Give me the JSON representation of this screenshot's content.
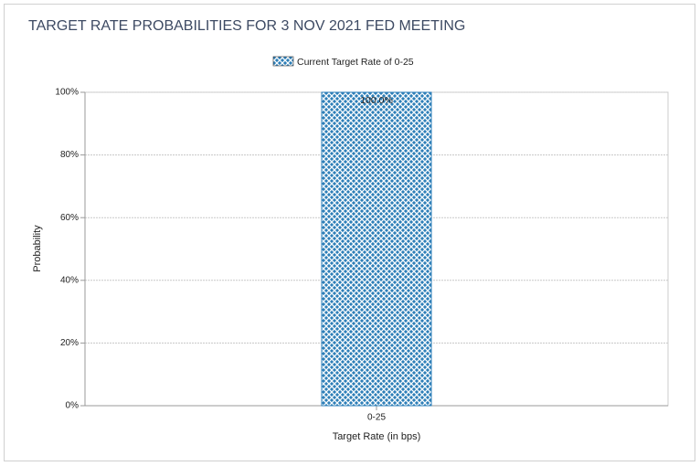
{
  "chart_data": {
    "type": "bar",
    "title": "TARGET RATE PROBABILITIES FOR 3 NOV 2021 FED MEETING",
    "x_label": "Target Rate (in bps)",
    "y_label": "Probability",
    "categories": [
      "0-25"
    ],
    "series": [
      {
        "name": "Current Target Rate of 0-25",
        "color": "#2e7fb8",
        "values": [
          100
        ],
        "value_labels": [
          "100.0%"
        ]
      }
    ],
    "ylim": [
      0,
      100
    ],
    "yticks": [
      {
        "value": 0,
        "label": "0%"
      },
      {
        "value": 20,
        "label": "20%"
      },
      {
        "value": 40,
        "label": "40%"
      },
      {
        "value": 60,
        "label": "60%"
      },
      {
        "value": 80,
        "label": "80%"
      },
      {
        "value": 100,
        "label": "100%"
      }
    ],
    "grid": true,
    "legend": "top"
  }
}
